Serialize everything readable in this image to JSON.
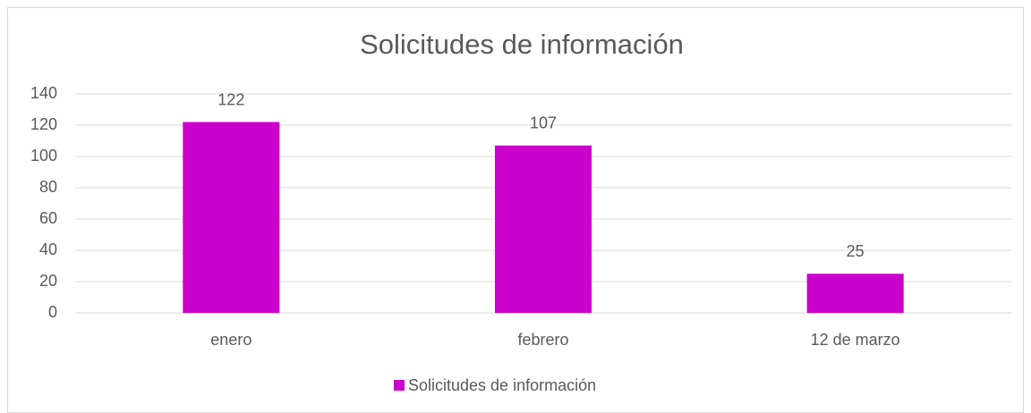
{
  "chart_data": {
    "type": "bar",
    "title": "Solicitudes de información",
    "categories": [
      "enero",
      "febrero",
      "12 de marzo"
    ],
    "series": [
      {
        "name": "Solicitudes de información",
        "color": "#cc00cc",
        "values": [
          122,
          107,
          25
        ]
      }
    ],
    "ylim": [
      0,
      140
    ],
    "yticks": [
      0,
      20,
      40,
      60,
      80,
      100,
      120,
      140
    ],
    "grid": true,
    "legend": "bottom"
  }
}
